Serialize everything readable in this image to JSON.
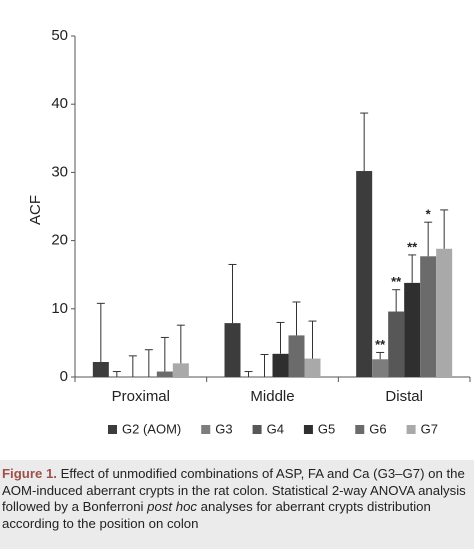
{
  "chart_data": {
    "type": "bar",
    "y_label": "ACF",
    "categories": [
      "Proximal",
      "Middle",
      "Distal"
    ],
    "series": [
      {
        "name": "G2 (AOM)",
        "color": "#3c3c3c",
        "values": [
          2.2,
          7.9,
          30.2
        ],
        "errors": [
          8.6,
          8.6,
          8.5
        ]
      },
      {
        "name": "G3",
        "color": "#7d7d7d",
        "values": [
          0,
          0,
          2.6
        ],
        "errors": [
          0.8,
          0.8,
          1.0
        ]
      },
      {
        "name": "G4",
        "color": "#575757",
        "values": [
          0,
          0,
          9.6
        ],
        "errors": [
          3.1,
          3.3,
          3.2
        ]
      },
      {
        "name": "G5",
        "color": "#2f2f2f",
        "values": [
          0,
          3.4,
          13.8
        ],
        "errors": [
          4.0,
          4.6,
          4.1
        ]
      },
      {
        "name": "G6",
        "color": "#6b6b6b",
        "values": [
          0.8,
          6.1,
          17.7
        ],
        "errors": [
          5.0,
          4.9,
          5.0
        ]
      },
      {
        "name": "G7",
        "color": "#a9a9a9",
        "values": [
          2.0,
          2.7,
          18.8
        ],
        "errors": [
          5.6,
          5.5,
          5.7
        ]
      }
    ],
    "annotations": [
      {
        "text": "**",
        "series": "G3",
        "category": "Distal"
      },
      {
        "text": "**",
        "series": "G4",
        "category": "Distal"
      },
      {
        "text": "**",
        "series": "G5",
        "category": "Distal"
      },
      {
        "text": "*",
        "series": "G6",
        "category": "Distal"
      }
    ],
    "ylim": [
      0,
      50
    ],
    "yticks": [
      0,
      10,
      20,
      30,
      40,
      50
    ],
    "grid": false,
    "legend": "bottom"
  },
  "caption": {
    "label": "Figure 1.",
    "parts": [
      "Effect of unmodified combinations of ASP, FA and Ca (G3–G7) on the AOM-induced aberrant crypts in the rat colon. Statistical 2-way ANOVA analysis followed by a Bonferroni ",
      "post hoc",
      " analyses for aberrant crypts distribution according to the position on colon"
    ]
  }
}
